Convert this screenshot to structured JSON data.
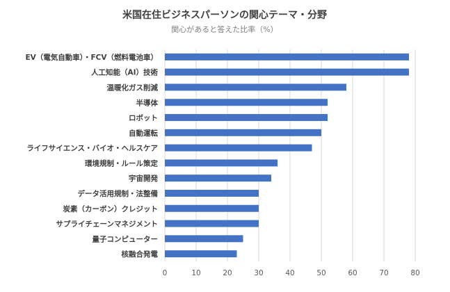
{
  "chart_data": {
    "type": "bar",
    "orientation": "horizontal",
    "title": "米国在住ビジネスパーソンの関心テーマ・分野",
    "subtitle": "関心があると答えた比率（%）",
    "categories": [
      "EV（電気自動車）・FCV（燃料電池車）",
      "人工知能（AI）技術",
      "温暖化ガス削減",
      "半導体",
      "ロボット",
      "自動運転",
      "ライフサイエンス・バイオ・ヘルスケア",
      "環境規制・ルール策定",
      "宇宙開発",
      "データ活用規制・法整備",
      "炭素（カーボン）クレジット",
      "サプライチェーンマネジメント",
      "量子コンピューター",
      "核融合発電"
    ],
    "values": [
      78,
      78,
      58,
      52,
      52,
      50,
      47,
      36,
      34,
      30,
      30,
      30,
      25,
      23
    ],
    "xlim": [
      0,
      80
    ],
    "xticks": [
      "0",
      "10",
      "20",
      "30",
      "40",
      "50",
      "60",
      "70",
      "80"
    ],
    "grid": "vertical",
    "bar_color": "#4472C4"
  }
}
